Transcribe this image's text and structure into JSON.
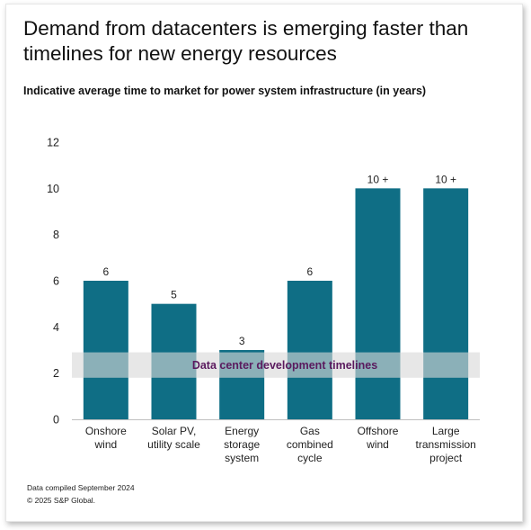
{
  "title": "Demand from datacenters is emerging faster than timelines for new energy resources",
  "subtitle": "Indicative average time to market for power system infrastructure (in years)",
  "footnote": {
    "compiled": "Data compiled September 2024",
    "copyright": "© 2025 S&P Global."
  },
  "chart_data": {
    "type": "bar",
    "categories": [
      [
        "Onshore",
        "wind"
      ],
      [
        "Solar PV,",
        "utility scale"
      ],
      [
        "Energy",
        "storage",
        "system"
      ],
      [
        "Gas",
        "combined",
        "cycle"
      ],
      [
        "Offshore",
        "wind"
      ],
      [
        "Large",
        "transmission",
        "project"
      ]
    ],
    "values": [
      6,
      5,
      3,
      6,
      10,
      10
    ],
    "data_labels": [
      "6",
      "5",
      "3",
      "6",
      "10 +",
      "10 +"
    ],
    "ylim": [
      0,
      12
    ],
    "yticks": [
      "0",
      "2",
      "4",
      "6",
      "8",
      "10",
      "12"
    ],
    "grid": false,
    "bar_color": "#0f6e85",
    "band": {
      "label": "Data center development timelines",
      "from": 1.8,
      "to": 2.9,
      "color": "#d9d9d9",
      "label_color": "#5a1a5e"
    }
  }
}
